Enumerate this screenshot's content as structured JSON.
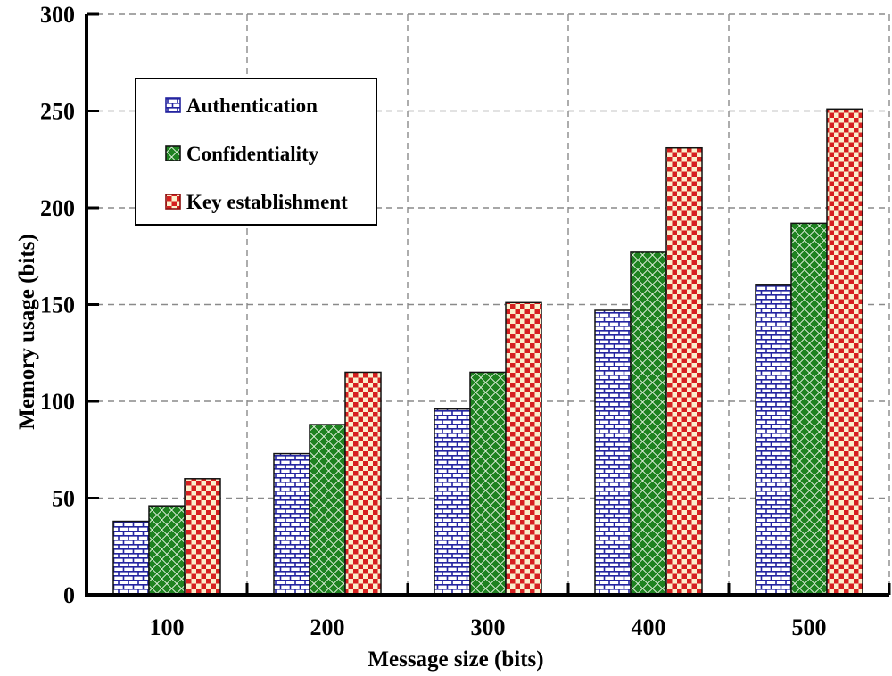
{
  "chart_data": {
    "type": "bar",
    "title": "",
    "xlabel": "Message size (bits)",
    "ylabel": "Memory usage (bits)",
    "categories": [
      "100",
      "200",
      "300",
      "400",
      "500"
    ],
    "series": [
      {
        "name": "Authentication",
        "pattern": "brick",
        "color": "#2424A0",
        "bg": "#FFFFFF",
        "swatch_border": "#2424A0",
        "values": [
          38,
          73,
          96,
          147,
          160
        ]
      },
      {
        "name": "Confidentiality",
        "pattern": "diamond",
        "color": "#1E8220",
        "bg": "#F0F8EC",
        "swatch_border": "#141414",
        "values": [
          46,
          88,
          115,
          177,
          192
        ]
      },
      {
        "name": "Key establishment",
        "pattern": "checker",
        "color": "#D62020",
        "bg": "#FAF0CC",
        "swatch_border": "#8B1010",
        "values": [
          60,
          115,
          151,
          231,
          251
        ]
      }
    ],
    "ylim": [
      0,
      300
    ],
    "ytick_step": 50,
    "yticks": [
      "0",
      "50",
      "100",
      "150",
      "200",
      "250",
      "300"
    ],
    "grid": "dashed",
    "legend_position": "top-left-inside"
  },
  "colors": {
    "authentication_blue": "#2424A0",
    "confidentiality_green": "#1E8220",
    "key_establishment_red": "#D62020",
    "checker_cream": "#FAF0CC",
    "diamond_background": "#F0F8EC",
    "grid_gray": "#8A8A8A",
    "axis_black": "#000000",
    "bar_outline": "#111111",
    "legend_background": "#FFFFFF",
    "page_background": "#FFFFFF"
  }
}
